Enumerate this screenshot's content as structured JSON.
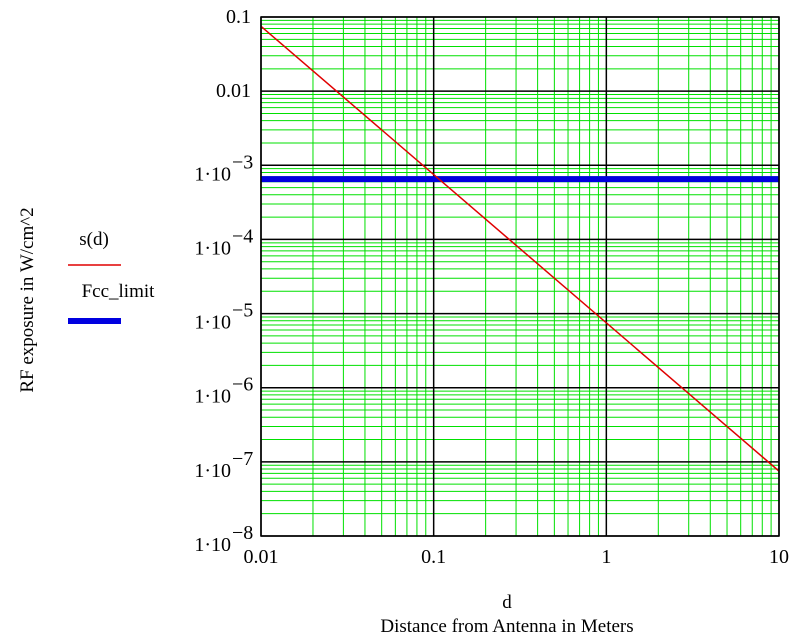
{
  "chart_data": {
    "type": "line",
    "x_scale": "log",
    "y_scale": "log",
    "xlim": [
      0.01,
      10
    ],
    "ylim": [
      1e-08,
      0.1
    ],
    "grid": true,
    "xlabel": "d",
    "xlabel_sub": "Distance from Antenna in Meters",
    "ylabel": "RF exposure in W/cm^2",
    "x_ticks": [
      {
        "value": 0.01,
        "label": "0.01"
      },
      {
        "value": 0.1,
        "label": "0.1"
      },
      {
        "value": 1,
        "label": "1"
      },
      {
        "value": 10,
        "label": "10"
      }
    ],
    "y_ticks": [
      {
        "value": 0.1,
        "label": "0.1"
      },
      {
        "value": 0.01,
        "label": "0.01"
      },
      {
        "value": 0.001,
        "label": "1·10",
        "exp": "−3"
      },
      {
        "value": 0.0001,
        "label": "1·10",
        "exp": "−4"
      },
      {
        "value": 1e-05,
        "label": "1·10",
        "exp": "−5"
      },
      {
        "value": 1e-06,
        "label": "1·10",
        "exp": "−6"
      },
      {
        "value": 1e-07,
        "label": "1·10",
        "exp": "−7"
      },
      {
        "value": 1e-08,
        "label": "1·10",
        "exp": "−8"
      }
    ],
    "legend_position": "left",
    "series": [
      {
        "name": "s(d)",
        "color": "#e00000",
        "x": [
          0.01,
          10
        ],
        "y": [
          0.075,
          7.5e-08
        ]
      },
      {
        "name": "Fcc_limit",
        "color": "#0000e0",
        "x": [
          0.01,
          10
        ],
        "y": [
          0.00065,
          0.00065
        ]
      }
    ],
    "colors": {
      "grid_major": "#000000",
      "grid_minor": "#00e000",
      "frame": "#000000"
    }
  }
}
